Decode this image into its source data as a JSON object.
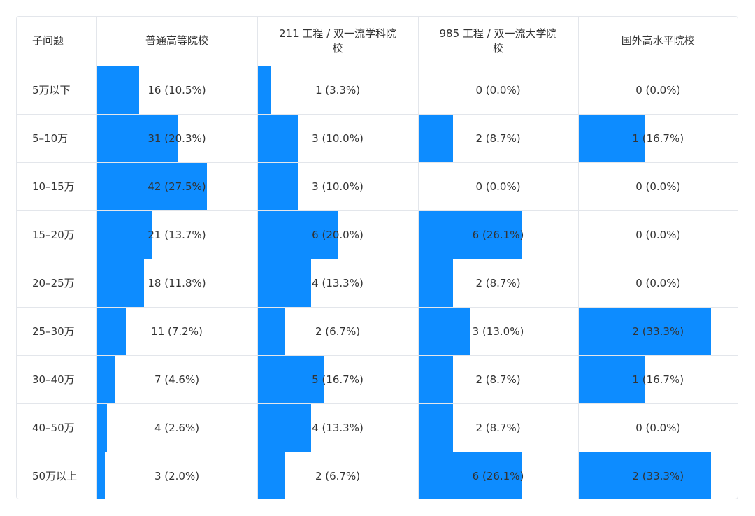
{
  "table": {
    "row_header_label": "子问题",
    "columns": [
      "普通高等院校",
      "211 工程 / 双一流学科院校",
      "985 工程 / 双一流大学院校",
      "国外高水平院校"
    ],
    "rows": [
      {
        "label": "5万以下",
        "cells": [
          "16 (10.5%)",
          "1 (3.3%)",
          "0 (0.0%)",
          "0 (0.0%)"
        ]
      },
      {
        "label": "5–10万",
        "cells": [
          "31 (20.3%)",
          "3 (10.0%)",
          "2 (8.7%)",
          "1 (16.7%)"
        ]
      },
      {
        "label": "10–15万",
        "cells": [
          "42 (27.5%)",
          "3 (10.0%)",
          "0 (0.0%)",
          "0 (0.0%)"
        ]
      },
      {
        "label": "15–20万",
        "cells": [
          "21 (13.7%)",
          "6 (20.0%)",
          "6 (26.1%)",
          "0 (0.0%)"
        ]
      },
      {
        "label": "20–25万",
        "cells": [
          "18 (11.8%)",
          "4 (13.3%)",
          "2 (8.7%)",
          "0 (0.0%)"
        ]
      },
      {
        "label": "25–30万",
        "cells": [
          "11 (7.2%)",
          "2 (6.7%)",
          "3 (13.0%)",
          "2 (33.3%)"
        ]
      },
      {
        "label": "30–40万",
        "cells": [
          "7 (4.6%)",
          "5 (16.7%)",
          "2 (8.7%)",
          "1 (16.7%)"
        ]
      },
      {
        "label": "40–50万",
        "cells": [
          "4 (2.6%)",
          "4 (13.3%)",
          "2 (8.7%)",
          "0 (0.0%)"
        ]
      },
      {
        "label": "50万以上",
        "cells": [
          "3 (2.0%)",
          "2 (6.7%)",
          "6 (26.1%)",
          "2 (33.3%)"
        ]
      }
    ]
  },
  "chart_data": {
    "type": "table",
    "columns": [
      "普通高等院校",
      "211 工程 / 双一流学科院校",
      "985 工程 / 双一流大学院校",
      "国外高水平院校"
    ],
    "categories": [
      "5万以下",
      "5–10万",
      "10–15万",
      "15–20万",
      "20–25万",
      "25–30万",
      "30–40万",
      "40–50万",
      "50万以上"
    ],
    "series": [
      {
        "name": "普通高等院校",
        "counts": [
          16,
          31,
          42,
          21,
          18,
          11,
          7,
          4,
          3
        ],
        "percents": [
          10.5,
          20.3,
          27.5,
          13.7,
          11.8,
          7.2,
          4.6,
          2.6,
          2.0
        ]
      },
      {
        "name": "211 工程 / 双一流学科院校",
        "counts": [
          1,
          3,
          3,
          6,
          4,
          2,
          5,
          4,
          2
        ],
        "percents": [
          3.3,
          10.0,
          10.0,
          20.0,
          13.3,
          6.7,
          16.7,
          13.3,
          6.7
        ]
      },
      {
        "name": "985 工程 / 双一流大学院校",
        "counts": [
          0,
          2,
          0,
          6,
          2,
          3,
          2,
          2,
          6
        ],
        "percents": [
          0.0,
          8.7,
          0.0,
          26.1,
          8.7,
          13.0,
          8.7,
          8.7,
          26.1
        ]
      },
      {
        "name": "国外高水平院校",
        "counts": [
          0,
          1,
          0,
          0,
          0,
          2,
          1,
          0,
          2
        ],
        "percents": [
          0.0,
          16.7,
          0.0,
          0.0,
          0.0,
          33.3,
          16.7,
          0.0,
          33.3
        ]
      }
    ],
    "bar_color": "#0d8cff"
  }
}
